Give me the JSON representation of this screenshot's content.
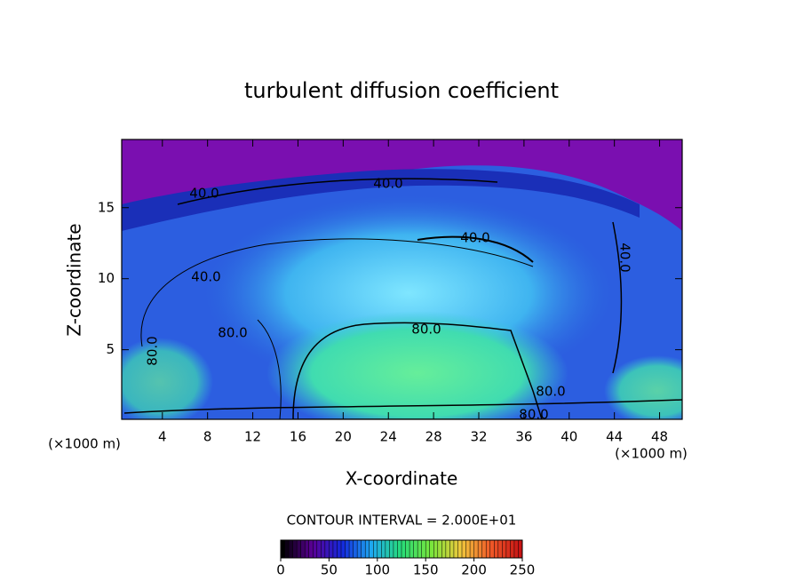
{
  "chart_data": {
    "type": "contour",
    "title": "turbulent diffusion coefficient",
    "x_label": "X-coordinate",
    "y_label": "Z-coordinate",
    "x_unit": "(×1000 m)",
    "y_unit": "(×1000 m)",
    "xlim": [
      0.4,
      50
    ],
    "ylim": [
      0.1,
      19.8
    ],
    "xticks": [
      4,
      8,
      12,
      16,
      20,
      24,
      28,
      32,
      36,
      40,
      44,
      48
    ],
    "yticks": [
      5,
      10,
      15
    ],
    "contour_interval_label": "CONTOUR INTERVAL = 2.000E+01",
    "contour_labels": [
      {
        "value": 40,
        "label": "40.0"
      },
      {
        "value": 40,
        "label": "40.0"
      },
      {
        "value": 40,
        "label": "40.0"
      },
      {
        "value": 40,
        "label": "40.0"
      },
      {
        "value": 40,
        "label": "40.0"
      },
      {
        "value": 80,
        "label": "80.0"
      },
      {
        "value": 80,
        "label": "80.0"
      },
      {
        "value": 80,
        "label": "80.0"
      },
      {
        "value": 80,
        "label": "80.0"
      },
      {
        "value": 80,
        "label": "80.0"
      }
    ],
    "colorbar": {
      "lim": [
        0,
        250
      ],
      "ticks": [
        0,
        50,
        100,
        150,
        200,
        250
      ]
    }
  }
}
